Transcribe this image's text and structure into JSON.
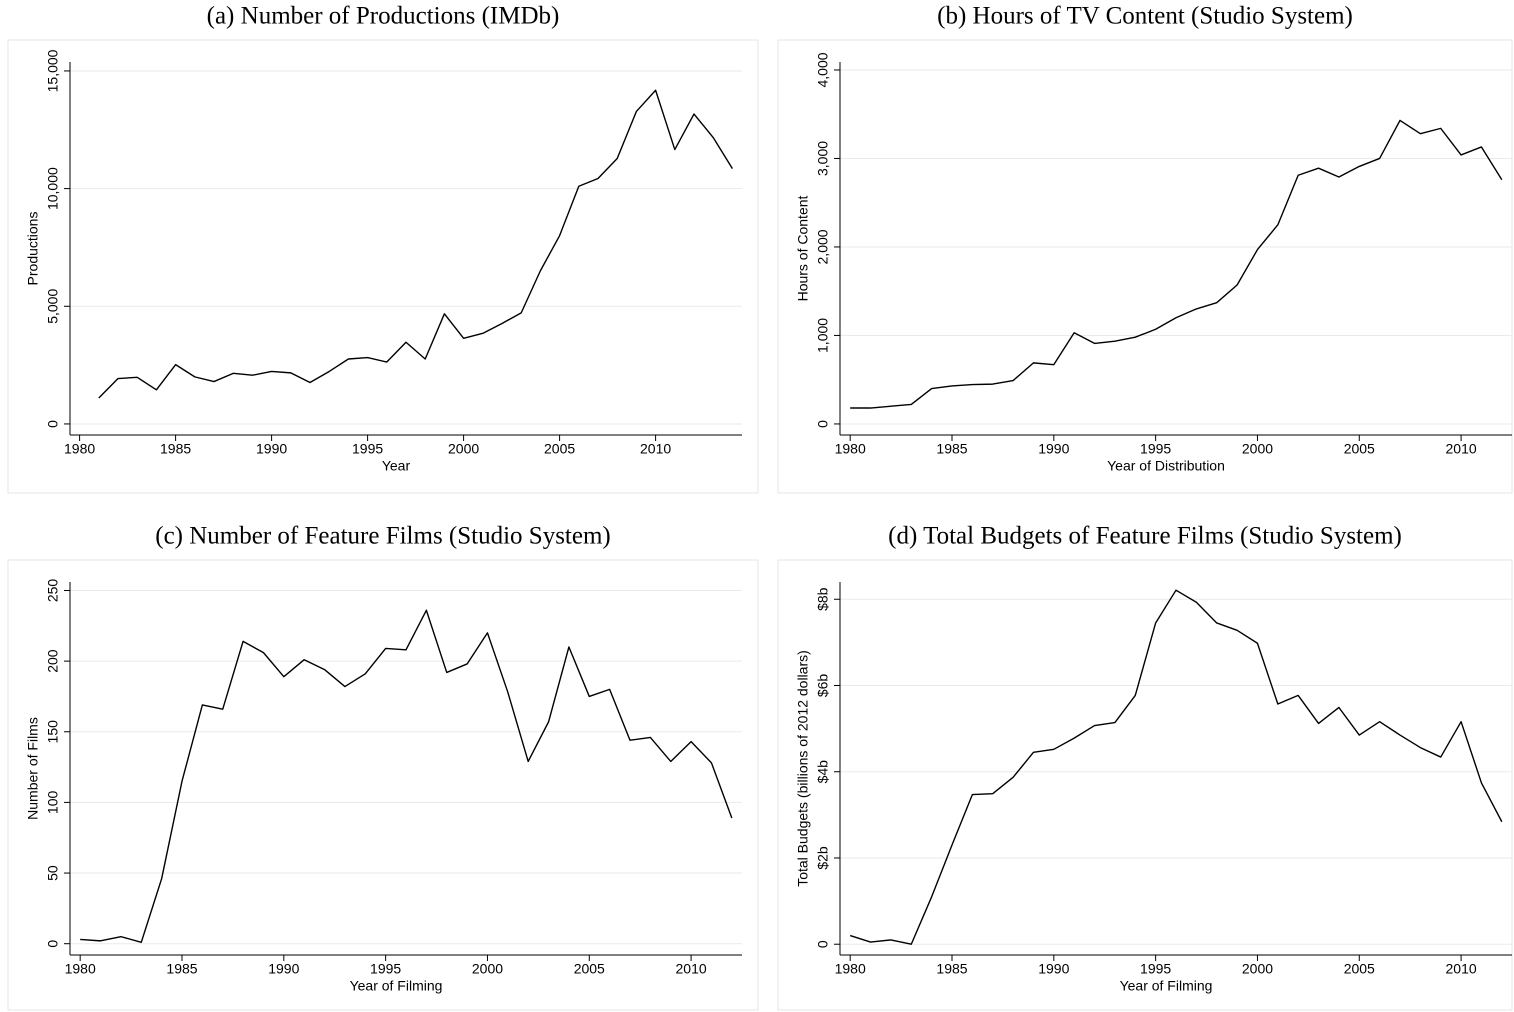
{
  "chart_data": [
    {
      "type": "line",
      "title": "(a) Number of Productions (IMDb)",
      "xlabel": "Year",
      "ylabel": "Productions",
      "x": [
        1981,
        1982,
        1983,
        1984,
        1985,
        1986,
        1987,
        1988,
        1989,
        1990,
        1991,
        1992,
        1993,
        1994,
        1995,
        1996,
        1997,
        1998,
        1999,
        2000,
        2001,
        2002,
        2003,
        2004,
        2005,
        2006,
        2007,
        2008,
        2009,
        2010,
        2011,
        2012,
        2013,
        2014
      ],
      "values": [
        1100,
        1930,
        1980,
        1450,
        2520,
        2000,
        1800,
        2150,
        2070,
        2230,
        2170,
        1760,
        2230,
        2760,
        2820,
        2630,
        3470,
        2760,
        4680,
        3640,
        3850,
        4270,
        4720,
        6510,
        8000,
        10100,
        10430,
        11280,
        13280,
        14180,
        11660,
        13170,
        12170,
        10850
      ],
      "color": "#000000",
      "xlim": [
        1979.5,
        2014.5
      ],
      "ylim": [
        -470,
        15380
      ],
      "xticks": [
        1980,
        1985,
        1990,
        1995,
        2000,
        2005,
        2010
      ],
      "yticks": [
        0,
        {
          "value": 5000,
          "label": "5,000"
        },
        {
          "value": 10000,
          "label": "10,000"
        },
        {
          "value": 15000,
          "label": "15,000"
        }
      ],
      "grid": true
    },
    {
      "type": "line",
      "title": "(b) Hours of TV Content (Studio System)",
      "xlabel": "Year of Distribution",
      "ylabel": "Hours of Content",
      "x": [
        1980,
        1981,
        1982,
        1983,
        1984,
        1985,
        1986,
        1987,
        1988,
        1989,
        1990,
        1991,
        1992,
        1993,
        1994,
        1995,
        1996,
        1997,
        1998,
        1999,
        2000,
        2001,
        2002,
        2003,
        2004,
        2005,
        2006,
        2007,
        2008,
        2009,
        2010,
        2011,
        2012
      ],
      "values": [
        180,
        180,
        200,
        220,
        400,
        430,
        445,
        450,
        490,
        690,
        670,
        1030,
        910,
        935,
        980,
        1070,
        1200,
        1300,
        1370,
        1570,
        1970,
        2250,
        2810,
        2890,
        2790,
        2910,
        3000,
        3430,
        3280,
        3340,
        3040,
        3130,
        2760
      ],
      "color": "#000000",
      "xlim": [
        1979.5,
        2012.5
      ],
      "ylim": [
        -125,
        4090
      ],
      "xticks": [
        1980,
        1985,
        1990,
        1995,
        2000,
        2005,
        2010
      ],
      "yticks": [
        0,
        {
          "value": 1000,
          "label": "1,000"
        },
        {
          "value": 2000,
          "label": "2,000"
        },
        {
          "value": 3000,
          "label": "3,000"
        },
        {
          "value": 4000,
          "label": "4,000"
        }
      ],
      "grid": true
    },
    {
      "type": "line",
      "title": "(c) Number of Feature Films (Studio System)",
      "xlabel": "Year of Filming",
      "ylabel": "Number of Films",
      "x": [
        1980,
        1981,
        1982,
        1983,
        1984,
        1985,
        1986,
        1987,
        1988,
        1989,
        1990,
        1991,
        1992,
        1993,
        1994,
        1995,
        1996,
        1997,
        1998,
        1999,
        2000,
        2001,
        2002,
        2003,
        2004,
        2005,
        2006,
        2007,
        2008,
        2009,
        2010,
        2011,
        2012
      ],
      "values": [
        3,
        2,
        5,
        1,
        46,
        115,
        169,
        166,
        214,
        206,
        189,
        201,
        194,
        182,
        191,
        209,
        208,
        236,
        192,
        198,
        220,
        178,
        129,
        157,
        210,
        175,
        180,
        144,
        146,
        129,
        143,
        128,
        89
      ],
      "color": "#000000",
      "xlim": [
        1979.5,
        2012.5
      ],
      "ylim": [
        -8,
        256
      ],
      "xticks": [
        1980,
        1985,
        1990,
        1995,
        2000,
        2005,
        2010
      ],
      "yticks": [
        0,
        50,
        100,
        150,
        200,
        250
      ],
      "grid": true
    },
    {
      "type": "line",
      "title": "(d) Total Budgets of Feature Films (Studio System)",
      "xlabel": "Year of Filming",
      "ylabel": "Total Budgets (billions of 2012 dollars)",
      "x": [
        1980,
        1981,
        1982,
        1983,
        1984,
        1985,
        1986,
        1987,
        1988,
        1989,
        1990,
        1991,
        1992,
        1993,
        1994,
        1995,
        1996,
        1997,
        1998,
        1999,
        2000,
        2001,
        2002,
        2003,
        2004,
        2005,
        2006,
        2007,
        2008,
        2009,
        2010,
        2011,
        2012
      ],
      "values": [
        0.2,
        0.05,
        0.1,
        0.0,
        1.1,
        2.3,
        3.47,
        3.49,
        3.87,
        4.45,
        4.52,
        4.78,
        5.07,
        5.14,
        5.77,
        7.45,
        8.21,
        7.93,
        7.45,
        7.28,
        6.98,
        5.57,
        5.77,
        5.12,
        5.49,
        4.85,
        5.16,
        4.85,
        4.56,
        4.34,
        5.16,
        3.74,
        2.84
      ],
      "color": "#000000",
      "xlim": [
        1979.5,
        2012.5
      ],
      "ylim": [
        -0.25,
        8.4
      ],
      "xticks": [
        1980,
        1985,
        1990,
        1995,
        2000,
        2005,
        2010
      ],
      "yticks": [
        0,
        {
          "value": 2,
          "label": "$2b"
        },
        {
          "value": 4,
          "label": "$4b"
        },
        {
          "value": 6,
          "label": "$6b"
        },
        {
          "value": 8,
          "label": "$8b"
        }
      ],
      "grid": true
    }
  ]
}
